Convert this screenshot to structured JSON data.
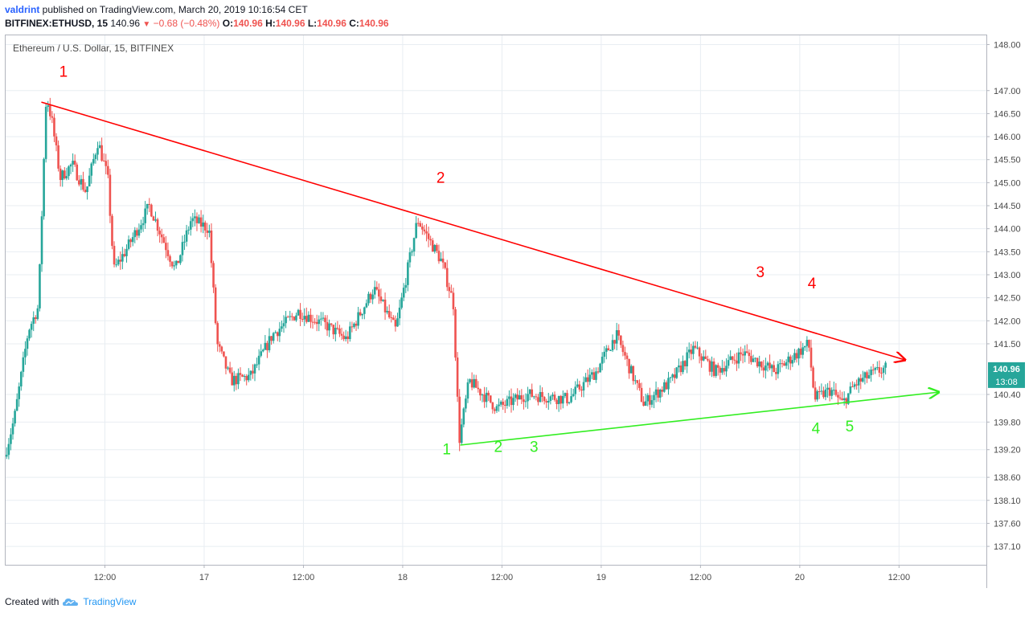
{
  "header": {
    "user": "valdrint",
    "published": " published on TradingView.com, March 20, 2019 10:16:54 CET",
    "symbol_interval": "BITFINEX:ETHUSD, 15",
    "price": "140.96",
    "change_arrow": "▼",
    "change": "−0.68 (−0.48%)",
    "o_label": "O:",
    "o_value": "140.96",
    "h_label": "H:",
    "h_value": "140.96",
    "l_label": "L:",
    "l_value": "140.96",
    "c_label": "C:",
    "c_value": "140.96"
  },
  "footer": {
    "created_with": "Created with",
    "brand": "TradingView"
  },
  "colors": {
    "up": "#26a69a",
    "down": "#ef5350",
    "resistance": "#ff0000",
    "support": "#33ee22",
    "last_price_bg": "#26a69a",
    "grid": "#e8edf2"
  },
  "chart_data": {
    "type": "candlestick",
    "title": "Ethereum / U.S. Dollar, 15, BITFINEX",
    "y_ticks": [
      "148.00",
      "147.00",
      "146.50",
      "146.00",
      "145.50",
      "145.00",
      "144.50",
      "144.00",
      "143.50",
      "143.00",
      "142.50",
      "142.00",
      "141.50",
      "140.40",
      "139.80",
      "139.20",
      "138.60",
      "138.10",
      "137.60",
      "137.10"
    ],
    "ylim": [
      136.7,
      148.2
    ],
    "x_ticks": [
      {
        "label": "12:00",
        "t": 0.5
      },
      {
        "label": "17",
        "t": 1.0
      },
      {
        "label": "12:00",
        "t": 1.5
      },
      {
        "label": "18",
        "t": 2.0
      },
      {
        "label": "12:00",
        "t": 2.5
      },
      {
        "label": "19",
        "t": 3.0
      },
      {
        "label": "12:00",
        "t": 3.5
      },
      {
        "label": "20",
        "t": 4.0
      },
      {
        "label": "12:00",
        "t": 4.5
      }
    ],
    "xlim_days": [
      0.0,
      4.94
    ],
    "last_price": "140.96",
    "countdown": "13:08",
    "price_anchors": [
      {
        "t": 0.0,
        "p": 139.05
      },
      {
        "t": 0.05,
        "p": 139.9
      },
      {
        "t": 0.12,
        "p": 141.8
      },
      {
        "t": 0.17,
        "p": 142.3
      },
      {
        "t": 0.21,
        "p": 146.9
      },
      {
        "t": 0.24,
        "p": 146.3
      },
      {
        "t": 0.28,
        "p": 145.1
      },
      {
        "t": 0.34,
        "p": 145.4
      },
      {
        "t": 0.41,
        "p": 144.8
      },
      {
        "t": 0.47,
        "p": 145.9
      },
      {
        "t": 0.52,
        "p": 145.1
      },
      {
        "t": 0.55,
        "p": 143.1
      },
      {
        "t": 0.62,
        "p": 143.6
      },
      {
        "t": 0.73,
        "p": 144.5
      },
      {
        "t": 0.86,
        "p": 143.1
      },
      {
        "t": 0.94,
        "p": 144.2
      },
      {
        "t": 1.03,
        "p": 144.0
      },
      {
        "t": 1.07,
        "p": 141.5
      },
      {
        "t": 1.14,
        "p": 140.7
      },
      {
        "t": 1.24,
        "p": 140.8
      },
      {
        "t": 1.35,
        "p": 141.7
      },
      {
        "t": 1.48,
        "p": 142.2
      },
      {
        "t": 1.62,
        "p": 141.9
      },
      {
        "t": 1.72,
        "p": 141.6
      },
      {
        "t": 1.86,
        "p": 142.7
      },
      {
        "t": 1.97,
        "p": 141.8
      },
      {
        "t": 2.08,
        "p": 144.2
      },
      {
        "t": 2.2,
        "p": 143.3
      },
      {
        "t": 2.26,
        "p": 142.4
      },
      {
        "t": 2.29,
        "p": 139.4
      },
      {
        "t": 2.34,
        "p": 140.7
      },
      {
        "t": 2.48,
        "p": 140.1
      },
      {
        "t": 2.63,
        "p": 140.4
      },
      {
        "t": 2.84,
        "p": 140.3
      },
      {
        "t": 2.98,
        "p": 140.9
      },
      {
        "t": 3.08,
        "p": 141.7
      },
      {
        "t": 3.22,
        "p": 140.2
      },
      {
        "t": 3.36,
        "p": 140.7
      },
      {
        "t": 3.47,
        "p": 141.4
      },
      {
        "t": 3.58,
        "p": 140.9
      },
      {
        "t": 3.72,
        "p": 141.3
      },
      {
        "t": 3.88,
        "p": 140.9
      },
      {
        "t": 4.05,
        "p": 141.5
      },
      {
        "t": 4.08,
        "p": 140.3
      },
      {
        "t": 4.16,
        "p": 140.5
      },
      {
        "t": 4.22,
        "p": 140.2
      },
      {
        "t": 4.28,
        "p": 140.6
      },
      {
        "t": 4.35,
        "p": 140.8
      },
      {
        "t": 4.43,
        "p": 140.96
      }
    ],
    "resistance_line": {
      "t1": 0.18,
      "p1": 146.75,
      "t2": 4.53,
      "p2": 141.15
    },
    "support_line": {
      "t1": 2.29,
      "p1": 139.3,
      "t2": 4.7,
      "p2": 140.45
    },
    "resistance_labels": [
      {
        "text": "1",
        "t": 0.27,
        "p": 147.3
      },
      {
        "text": "2",
        "t": 2.17,
        "p": 145.0
      },
      {
        "text": "3",
        "t": 3.78,
        "p": 142.95
      },
      {
        "text": "4",
        "t": 4.04,
        "p": 142.7
      }
    ],
    "support_labels": [
      {
        "text": "1",
        "t": 2.2,
        "p": 139.1
      },
      {
        "text": "2",
        "t": 2.46,
        "p": 139.15
      },
      {
        "text": "3",
        "t": 2.64,
        "p": 139.15
      },
      {
        "text": "4",
        "t": 4.06,
        "p": 139.55
      },
      {
        "text": "5",
        "t": 4.23,
        "p": 139.6
      }
    ]
  }
}
